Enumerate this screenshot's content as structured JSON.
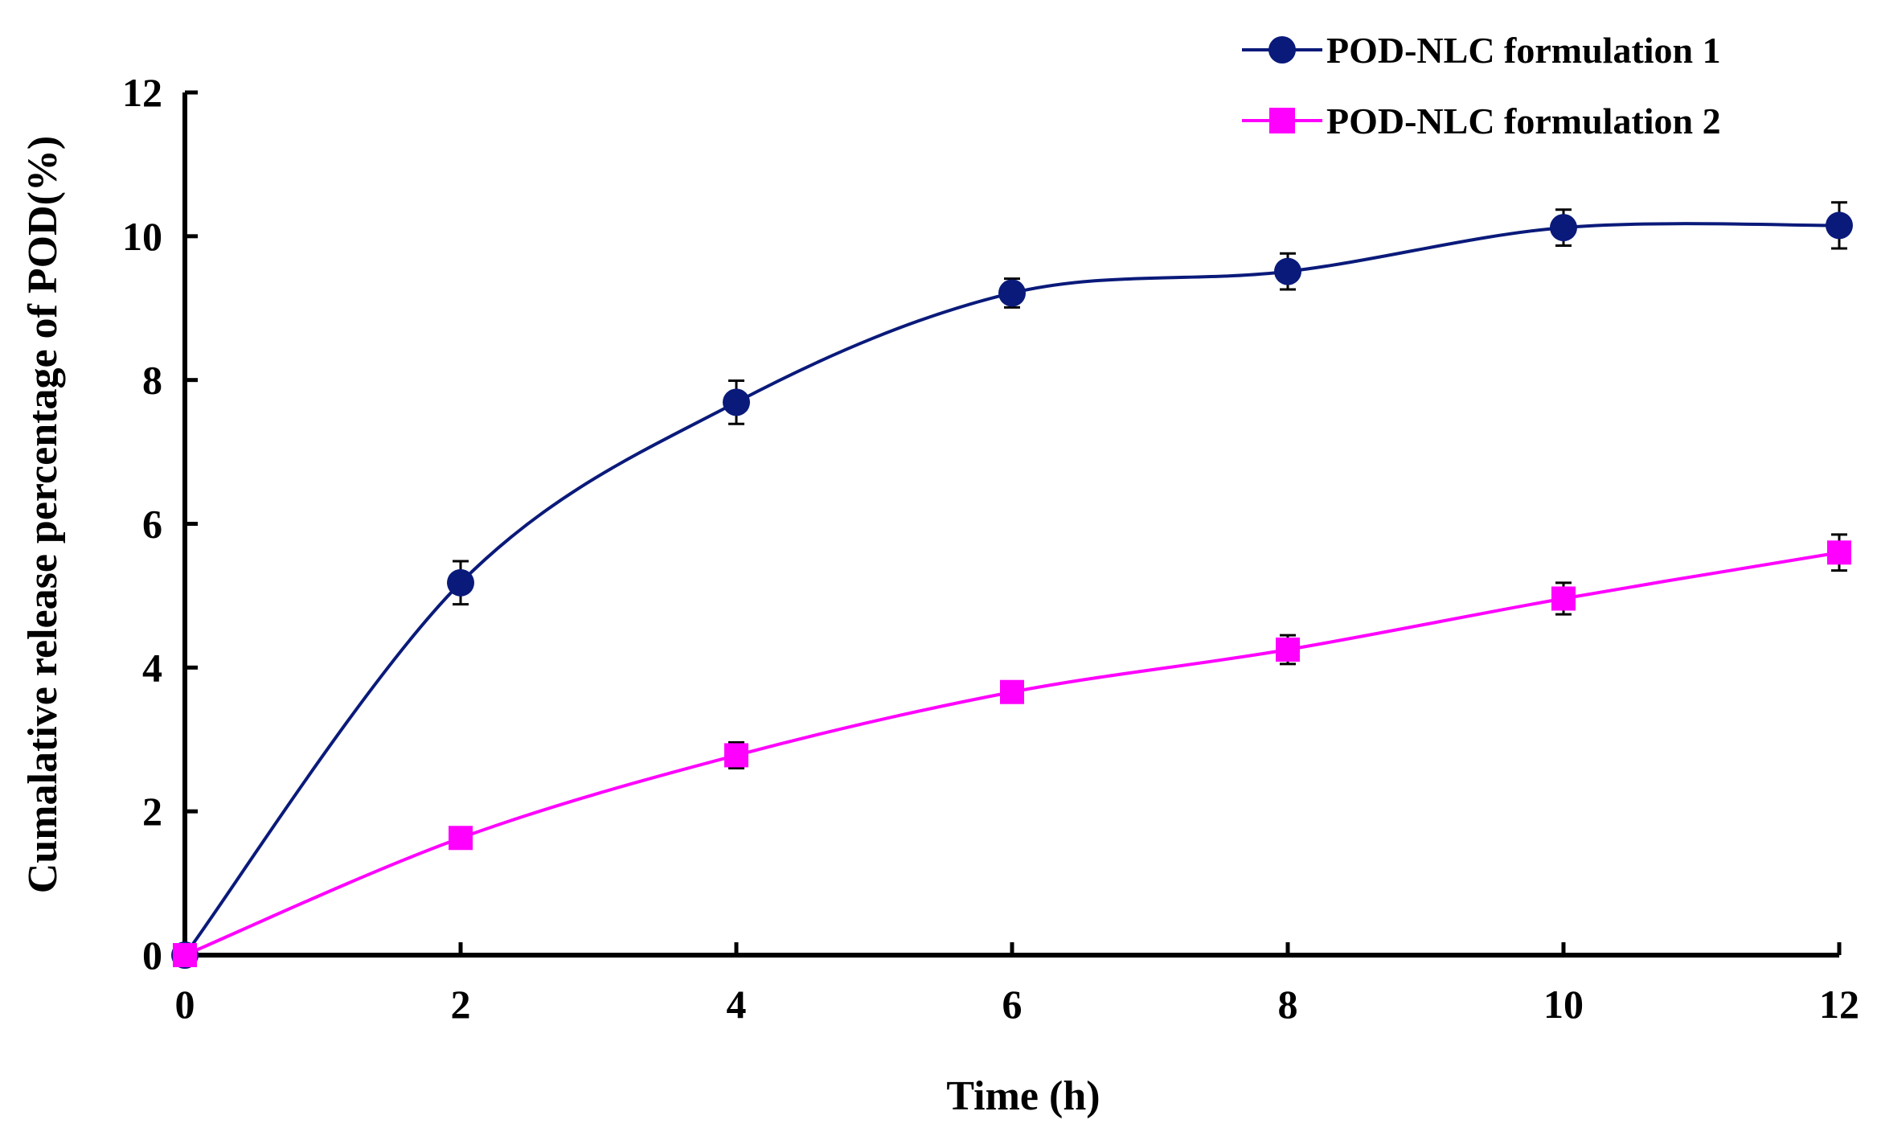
{
  "chart_data": {
    "type": "line",
    "title": "",
    "xlabel": "Time (h)",
    "ylabel": "Cumalative release percentage of POD(%)",
    "x": [
      0,
      2,
      4,
      6,
      8,
      10,
      12
    ],
    "x_ticks": [
      "0",
      "2",
      "4",
      "6",
      "8",
      "10",
      "12"
    ],
    "y_ticks": [
      "0",
      "2",
      "4",
      "6",
      "8",
      "10",
      "12"
    ],
    "xlim": [
      0,
      12
    ],
    "ylim": [
      0,
      12
    ],
    "grid": false,
    "legend_position": "top-right",
    "series": [
      {
        "name": "POD-NLC formulation 1",
        "color": "#0a1a7a",
        "marker": "circle",
        "values": [
          0,
          5.18,
          7.69,
          9.21,
          9.51,
          10.12,
          10.15
        ],
        "errors": [
          0,
          0.3,
          0.3,
          0.2,
          0.25,
          0.25,
          0.32
        ]
      },
      {
        "name": "POD-NLC formulation 2",
        "color": "#ff00ff",
        "marker": "square",
        "values": [
          0,
          1.63,
          2.78,
          3.66,
          4.25,
          4.96,
          5.6
        ],
        "errors": [
          0,
          0.1,
          0.18,
          0.1,
          0.2,
          0.22,
          0.25
        ]
      }
    ]
  }
}
